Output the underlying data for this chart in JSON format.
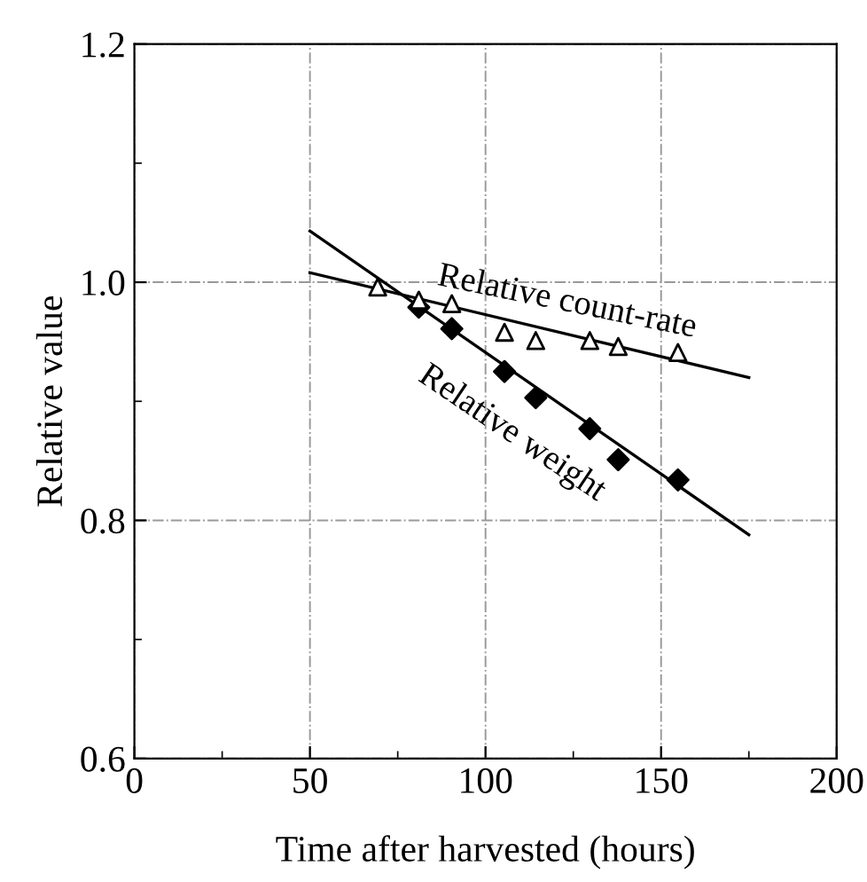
{
  "chart_data": {
    "type": "scatter",
    "xlabel": "Time after harvested (hours)",
    "ylabel": "Relative value",
    "xlim": [
      0,
      200
    ],
    "xticks": [
      0,
      50,
      100,
      150,
      200
    ],
    "ylim": [
      0.6,
      1.2
    ],
    "yticks": [
      0.6,
      0.8,
      {
        "value": 1.0,
        "label": "1.0"
      },
      1.2
    ],
    "grid": true,
    "series": [
      {
        "name": "Relative count-rate",
        "marker": "triangle",
        "color": "#000000",
        "x": [
          69.3,
          81,
          90.4,
          105.4,
          114.3,
          129.7,
          137.8,
          154.8
        ],
        "values": [
          0.996,
          0.985,
          0.982,
          0.958,
          0.951,
          0.951,
          0.946,
          0.941
        ]
      },
      {
        "name": "Relative weight",
        "marker": "diamond",
        "color": "#000000",
        "x": [
          81,
          90.4,
          105.4,
          114.3,
          129.7,
          137.8,
          154.8
        ],
        "values": [
          0.979,
          0.961,
          0.925,
          0.903,
          0.877,
          0.851,
          0.834
        ]
      },
      {
        "type": "line",
        "color": "#000000",
        "x": [
          50,
          175
        ],
        "values": [
          1.008,
          0.92
        ]
      },
      {
        "type": "line",
        "color": "#000000",
        "x": [
          50,
          175
        ],
        "values": [
          1.043,
          0.788
        ]
      }
    ]
  }
}
